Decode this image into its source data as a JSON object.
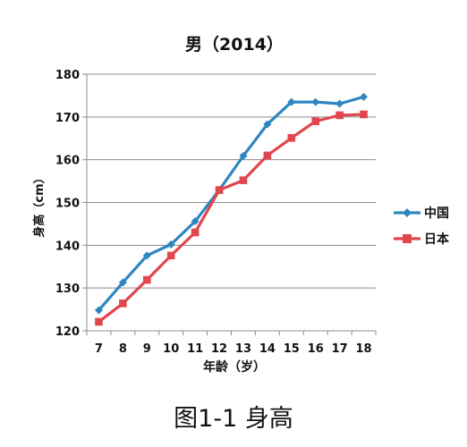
{
  "chart_data": {
    "type": "line",
    "title": "男（2014）",
    "xlabel": "年龄（岁）",
    "ylabel": "身高（cm）",
    "x": [
      7,
      8,
      9,
      10,
      11,
      12,
      13,
      14,
      15,
      16,
      17,
      18
    ],
    "ylim": [
      120,
      180
    ],
    "yticks": [
      120,
      130,
      140,
      150,
      160,
      170,
      180
    ],
    "grid": true,
    "legend": "right",
    "series": [
      {
        "name": "中国",
        "color": "#2E86C1",
        "marker": "diamond",
        "values": [
          124.8,
          131.3,
          137.6,
          140.2,
          145.6,
          152.9,
          160.9,
          168.3,
          173.5,
          173.5,
          173.1,
          174.7
        ]
      },
      {
        "name": "日本",
        "color": "#E0474C",
        "marker": "square",
        "values": [
          122.1,
          126.4,
          131.9,
          137.6,
          143.0,
          152.9,
          155.2,
          161.0,
          165.1,
          169.0,
          170.4,
          170.6
        ]
      }
    ]
  },
  "caption": "图1-1 身高"
}
